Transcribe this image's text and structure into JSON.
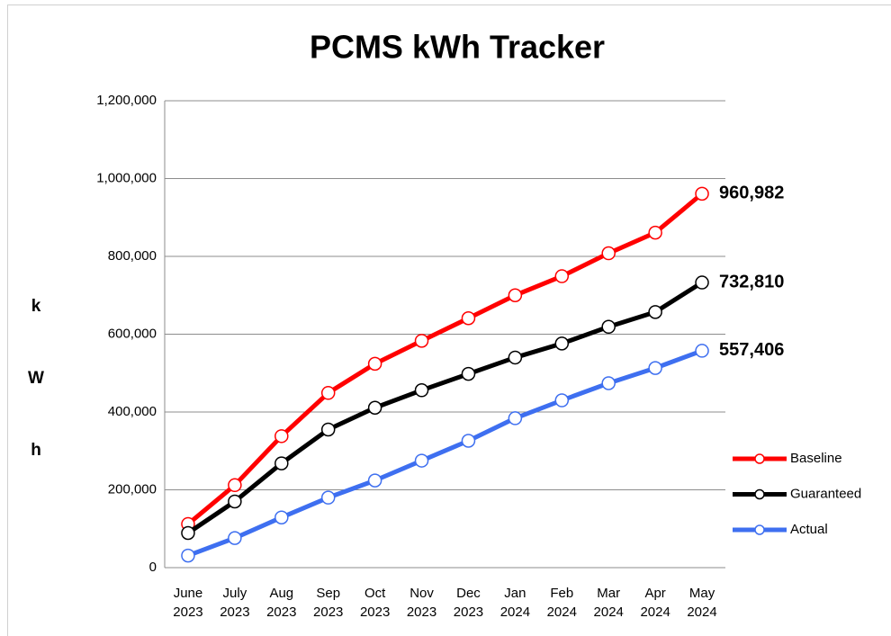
{
  "chart_data": {
    "type": "line",
    "title": "PCMS kWh Tracker",
    "y_label": "kWh",
    "categories": [
      "June 2023",
      "July 2023",
      "Aug 2023",
      "Sep 2023",
      "Oct 2023",
      "Nov 2023",
      "Dec 2023",
      "Jan 2024",
      "Feb 2024",
      "Mar 2024",
      "Apr 2024",
      "May 2024"
    ],
    "series": [
      {
        "name": "Baseline",
        "color": "#ff0000",
        "values": [
          112000,
          212000,
          338000,
          449000,
          524000,
          583000,
          641000,
          700000,
          749000,
          808000,
          861000,
          960982
        ],
        "value_labels": [
          null,
          null,
          null,
          null,
          null,
          null,
          null,
          null,
          null,
          null,
          null,
          "960,982"
        ]
      },
      {
        "name": "Guaranteed",
        "color": "#000000",
        "values": [
          89000,
          170000,
          268000,
          355000,
          411000,
          456000,
          498000,
          540000,
          576000,
          619000,
          657000,
          732810
        ],
        "value_labels": [
          null,
          null,
          null,
          null,
          null,
          null,
          null,
          null,
          null,
          null,
          null,
          "732,810"
        ]
      },
      {
        "name": "Actual",
        "color": "#3e6ff0",
        "values": [
          31000,
          76000,
          129000,
          180000,
          224000,
          275000,
          326000,
          384000,
          430000,
          474000,
          513000,
          557406
        ],
        "value_labels": [
          null,
          null,
          null,
          null,
          null,
          null,
          null,
          null,
          null,
          null,
          null,
          "557,406"
        ]
      }
    ],
    "ylim": [
      0,
      1200000
    ],
    "yticks": [
      0,
      {
        "value": 200000,
        "label": "200,000"
      },
      {
        "value": 400000,
        "label": "400,000"
      },
      {
        "value": 600000,
        "label": "600,000"
      },
      {
        "value": 800000,
        "label": "800,000"
      },
      {
        "value": 1000000,
        "label": "1,000,000"
      },
      {
        "value": 1200000,
        "label": "1,200,000"
      }
    ],
    "grid": true,
    "legend": "right"
  }
}
